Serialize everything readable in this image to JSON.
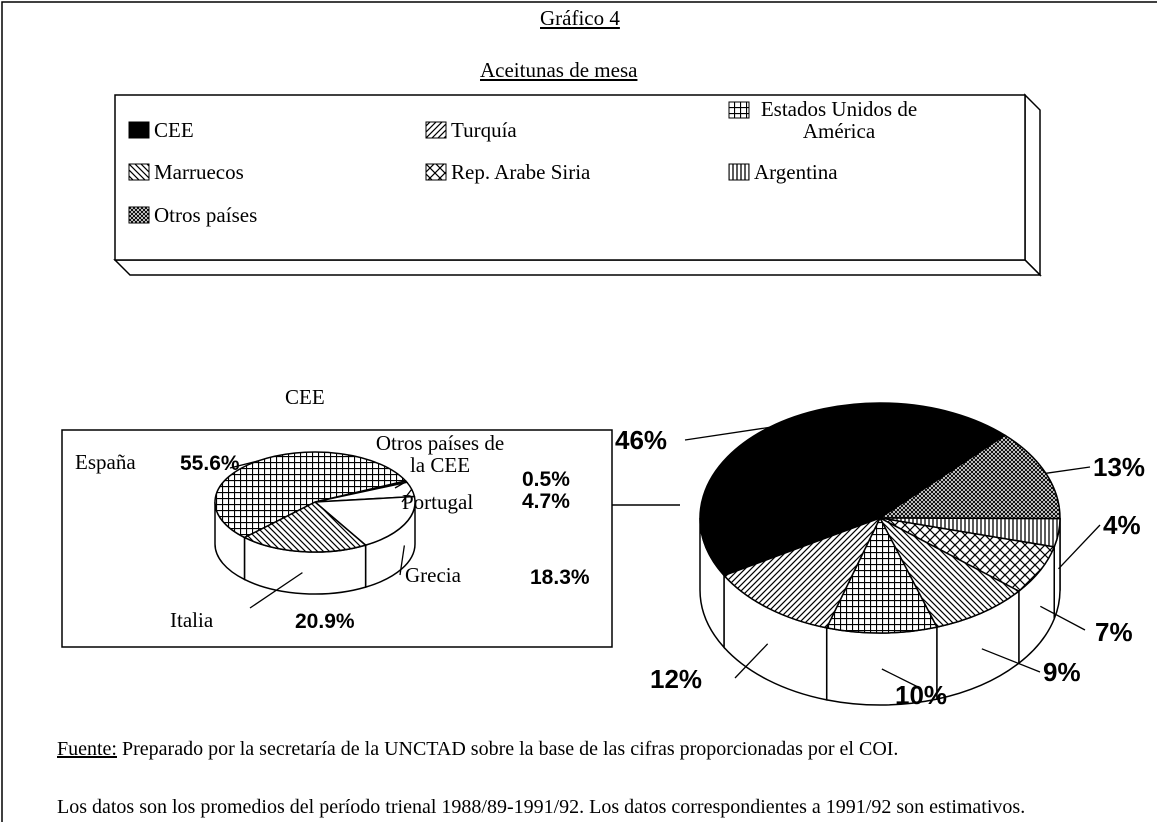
{
  "chart_data": [
    {
      "type": "pie",
      "title": "Gráfico 4",
      "subtitle": "Aceitunas de mesa",
      "legend": true,
      "categories": [
        "CEE",
        "Otros países",
        "Argentina",
        "Rep. Arabe Siria",
        "Marruecos",
        "Estados Unidos de América",
        "Turquía"
      ],
      "values": [
        46,
        13,
        4,
        7,
        9,
        10,
        12
      ],
      "value_labels": [
        "46%",
        "13%",
        "4%",
        "7%",
        "9%",
        "10%",
        "12%"
      ],
      "patterns": [
        "solid",
        "dense",
        "vertical",
        "crosshatch",
        "backslash",
        "grid",
        "slash"
      ]
    },
    {
      "type": "pie",
      "title": "CEE",
      "categories": [
        "Otros países de la CEE",
        "Portugal",
        "Grecia",
        "Italia",
        "España"
      ],
      "values": [
        0.5,
        4.7,
        18.3,
        20.9,
        55.6
      ],
      "value_labels": [
        "0.5%",
        "4.7%",
        "18.3%",
        "20.9%",
        "55.6%"
      ],
      "patterns": [
        "blank",
        "blank",
        "blank",
        "backslash",
        "grid"
      ]
    }
  ],
  "notes": {
    "source_label": "Fuente:",
    "source_text": "Preparado por la secretaría de la UNCTAD sobre la base de las cifras proporcionadas por el COI.",
    "text2": "Los datos son los promedios del período trienal 1988/89-1991/92.  Los datos correspondientes a 1991/92 son estimativos."
  }
}
